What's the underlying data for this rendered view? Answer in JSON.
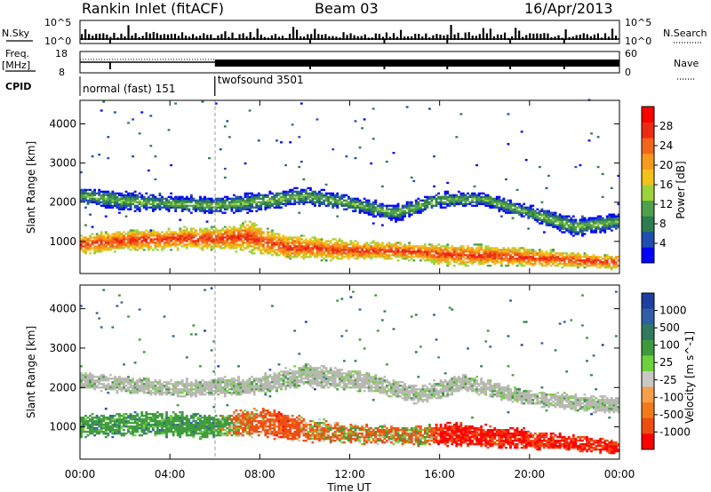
{
  "header": {
    "station": "Rankin Inlet (fitACF)",
    "beam": "Beam 03",
    "date": "16/Apr/2013"
  },
  "top_panels": {
    "nsky_label": "N.Sky",
    "nsearch_label": "N.Search",
    "nsky_ticks": [
      "10^5",
      "10^0"
    ],
    "freq_label": "Freq.",
    "freq_unit": "[MHz]",
    "freq_ticks": [
      "18",
      "8"
    ],
    "nave_label": "Nave",
    "nave_ticks": [
      "60",
      "0"
    ],
    "cpid_label": "CPID",
    "cpid_modes": [
      {
        "name": "normal (fast) 151",
        "start_h": 0,
        "end_h": 6
      },
      {
        "name": "twofsound 3501",
        "start_h": 6,
        "end_h": 24
      }
    ]
  },
  "colors": {
    "power_scale": [
      "#0000ff",
      "#1f4fb0",
      "#2e7d4f",
      "#4fa04a",
      "#9ed23a",
      "#f2c21a",
      "#f59a1a",
      "#f2651b",
      "#ee2a14",
      "#ff0000"
    ],
    "velocity_scale": [
      "#1d3fa3",
      "#2f5ea7",
      "#317a5e",
      "#3e9a3c",
      "#6fd13b",
      "#c9c9c4",
      "#f6a04a",
      "#f07a17",
      "#ee4d12",
      "#ff0000"
    ],
    "velocity_ground": "#b8b8b2"
  },
  "chart_data": [
    {
      "type": "heatmap",
      "name": "power",
      "xlabel": "Time UT",
      "ylabel": "Slant Range [km]",
      "x_ticks": [
        "00:00",
        "04:00",
        "08:00",
        "12:00",
        "16:00",
        "20:00",
        "00:00"
      ],
      "x_range_h": [
        0,
        24
      ],
      "y_range_km": [
        180,
        4600
      ],
      "y_ticks": [
        1000,
        2000,
        3000,
        4000
      ],
      "colorbar_label": "Power [dB]",
      "colorbar_ticks": [
        "28",
        "24",
        "20",
        "16",
        "12",
        "8",
        "4"
      ],
      "colorbar_range": [
        0,
        32
      ],
      "echo_bands": [
        {
          "label": "main",
          "points": [
            [
              0,
              900,
              260
            ],
            [
              2,
              1000,
              280
            ],
            [
              4,
              1050,
              280
            ],
            [
              6,
              1050,
              300
            ],
            [
              7.5,
              1100,
              400
            ],
            [
              9,
              850,
              320
            ],
            [
              12,
              750,
              250
            ],
            [
              15,
              720,
              220
            ],
            [
              16,
              650,
              280
            ],
            [
              19,
              600,
              260
            ],
            [
              22,
              500,
              200
            ],
            [
              24,
              450,
              180
            ]
          ],
          "power": 27
        },
        {
          "label": "upper",
          "points": [
            [
              0,
              2150,
              200
            ],
            [
              2,
              2000,
              250
            ],
            [
              4,
              1950,
              200
            ],
            [
              6,
              1900,
              220
            ],
            [
              8,
              2000,
              250
            ],
            [
              10,
              2150,
              220
            ],
            [
              12,
              1950,
              200
            ],
            [
              14,
              1700,
              220
            ],
            [
              16,
              2050,
              200
            ],
            [
              18,
              2050,
              180
            ],
            [
              20,
              1700,
              200
            ],
            [
              22,
              1350,
              250
            ],
            [
              24,
              1500,
              220
            ]
          ],
          "power": 13
        }
      ]
    },
    {
      "type": "heatmap",
      "name": "velocity",
      "xlabel": "Time UT",
      "ylabel": "Slant Range [km]",
      "x_ticks": [
        "00:00",
        "04:00",
        "08:00",
        "12:00",
        "16:00",
        "20:00",
        "00:00"
      ],
      "x_range_h": [
        0,
        24
      ],
      "y_range_km": [
        180,
        4600
      ],
      "y_ticks": [
        1000,
        2000,
        3000,
        4000
      ],
      "colorbar_label": "Velocity [m s^-1]",
      "colorbar_ticks": [
        "1000",
        "500",
        "100",
        "25",
        "-25",
        "-100",
        "-500",
        "-1000"
      ],
      "colorbar_range": [
        -1000,
        1000
      ],
      "echo_bands": [
        {
          "label": "main",
          "points": [
            [
              0,
              1000,
              300
            ],
            [
              3,
              1050,
              300
            ],
            [
              6,
              1000,
              320
            ],
            [
              8,
              1100,
              380
            ],
            [
              10,
              900,
              320
            ],
            [
              12,
              800,
              250
            ],
            [
              15,
              750,
              250
            ],
            [
              16,
              800,
              300
            ],
            [
              19,
              700,
              280
            ],
            [
              22,
              550,
              200
            ],
            [
              24,
              450,
              180
            ]
          ],
          "velocity": [
            [
              0,
              300
            ],
            [
              6,
              300
            ],
            [
              7,
              -120
            ],
            [
              9,
              -300
            ],
            [
              11,
              -60
            ],
            [
              15.5,
              -80
            ],
            [
              16,
              -600
            ],
            [
              24,
              -500
            ]
          ]
        },
        {
          "label": "upper",
          "points": [
            [
              0,
              2150,
              220
            ],
            [
              4,
              1950,
              220
            ],
            [
              8,
              2050,
              250
            ],
            [
              10,
              2300,
              300
            ],
            [
              13,
              2100,
              250
            ],
            [
              15,
              1800,
              250
            ],
            [
              17,
              2100,
              220
            ],
            [
              20,
              1700,
              200
            ],
            [
              24,
              1500,
              220
            ]
          ],
          "velocity": [
            [
              0,
              0
            ],
            [
              24,
              0
            ]
          ]
        }
      ]
    }
  ]
}
